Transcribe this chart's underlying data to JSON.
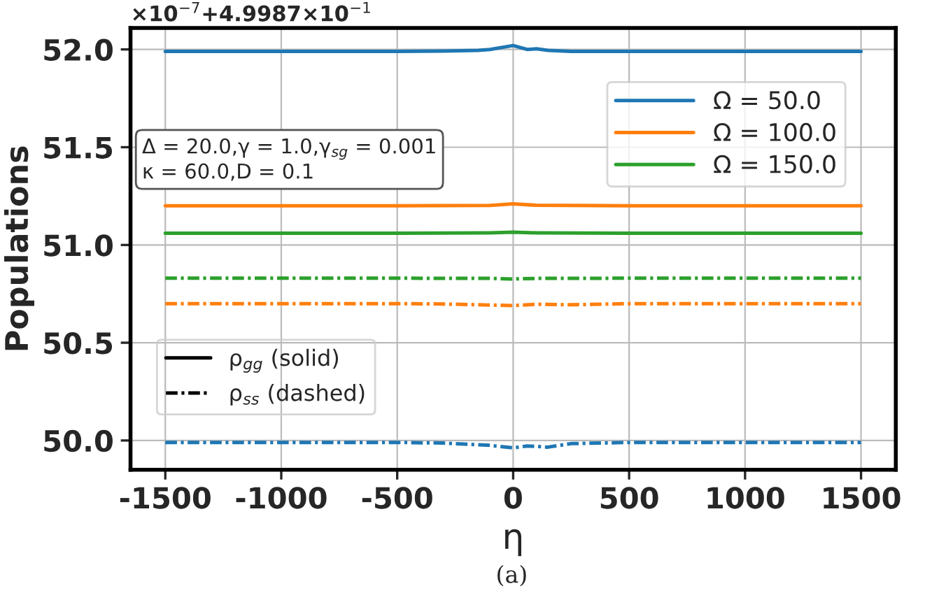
{
  "chart_data": {
    "type": "line",
    "xlabel": "η",
    "ylabel": "Populations",
    "series": [
      {
        "name": "Ω = 50.0",
        "color": "#1f77b4",
        "line_style": "solid",
        "x": [
          -1500,
          -500,
          -300,
          -150,
          -100,
          0,
          60,
          100,
          150,
          250,
          500,
          1500
        ],
        "values": [
          51.99,
          51.99,
          51.992,
          51.995,
          52.0,
          52.02,
          52.0,
          52.003,
          51.995,
          51.99,
          51.99,
          51.99
        ]
      },
      {
        "name": "Ω = 100.0",
        "color": "#ff7f0e",
        "line_style": "solid",
        "x": [
          -1500,
          -500,
          -100,
          0,
          100,
          500,
          1500
        ],
        "values": [
          51.2,
          51.2,
          51.202,
          51.21,
          51.203,
          51.2,
          51.2
        ]
      },
      {
        "name": "Ω = 150.0",
        "color": "#2ca02c",
        "line_style": "solid",
        "x": [
          -1500,
          -500,
          -100,
          0,
          100,
          500,
          1500
        ],
        "values": [
          51.06,
          51.06,
          51.062,
          51.065,
          51.062,
          51.06,
          51.06
        ]
      },
      {
        "color": "#2ca02c",
        "line_style": "dashdot",
        "x": [
          -1500,
          -500,
          -100,
          0,
          100,
          500,
          1500
        ],
        "values": [
          50.83,
          50.83,
          50.829,
          50.826,
          50.829,
          50.83,
          50.83
        ]
      },
      {
        "color": "#ff7f0e",
        "line_style": "dashdot",
        "x": [
          -1500,
          -500,
          -300,
          0,
          100,
          250,
          500,
          1500
        ],
        "values": [
          50.7,
          50.7,
          50.698,
          50.69,
          50.697,
          50.694,
          50.7,
          50.7
        ]
      },
      {
        "color": "#1f77b4",
        "line_style": "dashdot",
        "x": [
          -1500,
          -500,
          -300,
          -150,
          -100,
          0,
          60,
          150,
          250,
          500,
          1500
        ],
        "values": [
          49.99,
          49.99,
          49.987,
          49.978,
          49.975,
          49.962,
          49.972,
          49.966,
          49.984,
          49.99,
          49.99
        ]
      }
    ],
    "xlim": [
      -1650,
      1650
    ],
    "xticks": [
      -1500,
      -1000,
      -500,
      0,
      500,
      1000,
      1500
    ],
    "ylim": [
      49.85,
      52.11
    ],
    "yticks": [
      {
        "value": 50.0,
        "label": "50.0"
      },
      {
        "value": 50.5,
        "label": "50.5"
      },
      {
        "value": 51.0,
        "label": "51.0"
      },
      {
        "value": 51.5,
        "label": "51.5"
      },
      {
        "value": 52.0,
        "label": "52.0"
      }
    ],
    "grid": true,
    "legend": "top right",
    "annotations": [
      "×10$^{−7}$+4.9987×10$^{−1}$",
      "Δ = 20.0,γ = 1.0,γ$_{sg}$ = 0.001\nκ = 60.0,D = 0.1",
      "ρ$_{gg}$ (solid)",
      "ρ$_{ss}$ (dashed)",
      "(a)"
    ]
  }
}
